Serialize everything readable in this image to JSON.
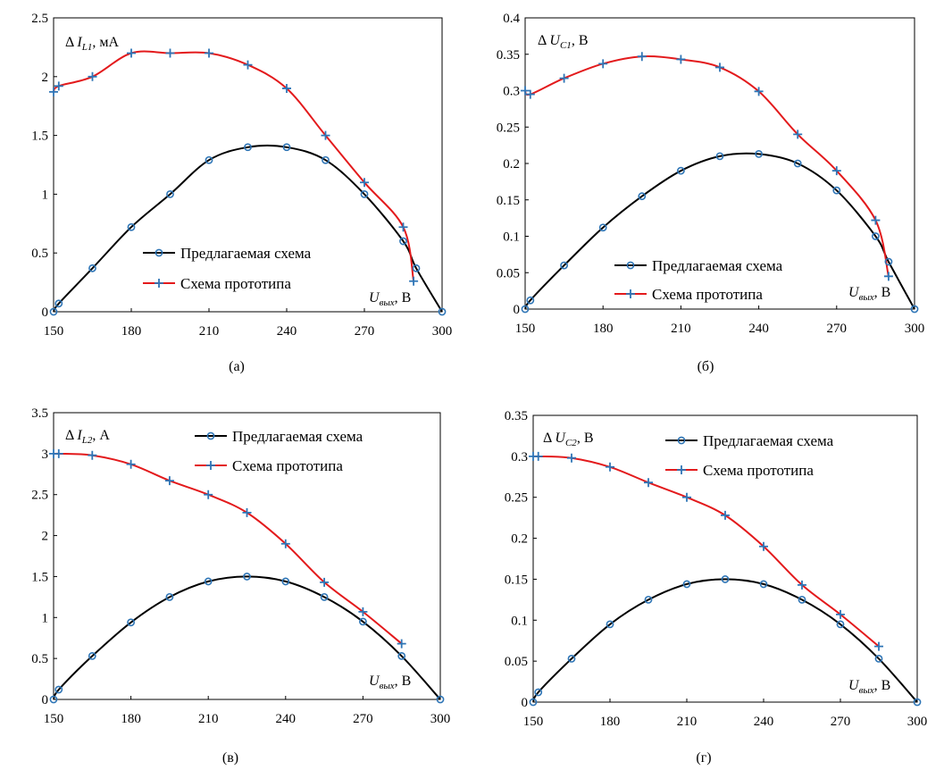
{
  "chart_data": [
    {
      "type": "line",
      "panel_label": "(а)",
      "y_label": {
        "delta": "Δ",
        "sym": "I",
        "sub": "L1",
        "unit": ", мА"
      },
      "x_label": {
        "sym": "U",
        "sub": "вых",
        "unit": ", В"
      },
      "xlim": [
        150,
        300
      ],
      "ylim": [
        0,
        2.5
      ],
      "xticks": [
        150,
        180,
        210,
        240,
        270,
        300
      ],
      "xtick_labels": [
        "150",
        "180",
        "210",
        "240",
        "270",
        "300"
      ],
      "yticks": [
        0,
        0.5,
        1,
        1.5,
        2,
        2.5
      ],
      "ytick_labels": [
        "0",
        "0.5",
        "1",
        "1.5",
        "2",
        "2.5"
      ],
      "legend_position": "lower-center",
      "series": [
        {
          "name": "Предлагаемая схема",
          "color": "#000000",
          "marker": "circle",
          "x": [
            150,
            152,
            165,
            180,
            195,
            210,
            225,
            240,
            255,
            270,
            285,
            290,
            300
          ],
          "y": [
            0,
            0.07,
            0.37,
            0.72,
            1.0,
            1.29,
            1.4,
            1.4,
            1.29,
            1.0,
            0.6,
            0.37,
            0
          ]
        },
        {
          "name": "Схема прототипа",
          "color": "#e31a1c",
          "marker": "plus",
          "x": [
            150,
            152,
            165,
            180,
            195,
            210,
            225,
            240,
            255,
            270,
            285,
            289
          ],
          "y": [
            1.87,
            1.92,
            2.0,
            2.2,
            2.2,
            2.2,
            2.1,
            1.9,
            1.5,
            1.1,
            0.72,
            0.26
          ]
        }
      ]
    },
    {
      "type": "line",
      "panel_label": "(б)",
      "y_label": {
        "delta": "Δ",
        "sym": "U",
        "sub": "C1",
        "unit": ", В"
      },
      "x_label": {
        "sym": "U",
        "sub": "вых",
        "unit": ", В"
      },
      "xlim": [
        150,
        300
      ],
      "ylim": [
        0,
        0.4
      ],
      "xticks": [
        150,
        180,
        210,
        240,
        270,
        300
      ],
      "xtick_labels": [
        "150",
        "180",
        "210",
        "240",
        "270",
        "300"
      ],
      "yticks": [
        0,
        0.05,
        0.1,
        0.15,
        0.2,
        0.25,
        0.3,
        0.35,
        0.4
      ],
      "ytick_labels": [
        "0",
        "0.05",
        "0.1",
        "0.15",
        "0.2",
        "0.25",
        "0.3",
        "0.35",
        "0.4"
      ],
      "legend_position": "lower-center",
      "series": [
        {
          "name": "Предлагаемая схема",
          "color": "#000000",
          "marker": "circle",
          "x": [
            150,
            152,
            165,
            180,
            195,
            210,
            225,
            240,
            255,
            270,
            285,
            290,
            300
          ],
          "y": [
            0,
            0.012,
            0.06,
            0.112,
            0.155,
            0.19,
            0.21,
            0.213,
            0.2,
            0.163,
            0.1,
            0.065,
            0
          ]
        },
        {
          "name": "Схема прототипа",
          "color": "#e31a1c",
          "marker": "plus",
          "x": [
            150,
            152,
            165,
            180,
            195,
            210,
            225,
            240,
            255,
            270,
            285,
            290
          ],
          "y": [
            0.3,
            0.295,
            0.317,
            0.337,
            0.347,
            0.343,
            0.332,
            0.299,
            0.24,
            0.19,
            0.122,
            0.045
          ]
        }
      ]
    },
    {
      "type": "line",
      "panel_label": "(в)",
      "y_label": {
        "delta": "Δ",
        "sym": "I",
        "sub": "L2",
        "unit": ", А"
      },
      "x_label": {
        "sym": "U",
        "sub": "вых",
        "unit": ", В"
      },
      "xlim": [
        150,
        300
      ],
      "ylim": [
        0,
        3.5
      ],
      "xticks": [
        150,
        180,
        210,
        240,
        270,
        300
      ],
      "xtick_labels": [
        "150",
        "180",
        "210",
        "240",
        "270",
        "300"
      ],
      "yticks": [
        0,
        0.5,
        1,
        1.5,
        2,
        2.5,
        3,
        3.5
      ],
      "ytick_labels": [
        "0",
        "0.5",
        "1",
        "1.5",
        "2",
        "2.5",
        "3",
        "3.5"
      ],
      "legend_position": "top-right",
      "series": [
        {
          "name": "Предлагаемая схема",
          "color": "#000000",
          "marker": "circle",
          "x": [
            150,
            152,
            165,
            180,
            195,
            210,
            225,
            240,
            255,
            270,
            285,
            300
          ],
          "y": [
            0,
            0.12,
            0.53,
            0.94,
            1.25,
            1.44,
            1.5,
            1.44,
            1.25,
            0.95,
            0.53,
            0
          ]
        },
        {
          "name": "Схема прототипа",
          "color": "#e31a1c",
          "marker": "plus",
          "x": [
            150,
            152,
            165,
            180,
            195,
            210,
            225,
            240,
            255,
            270,
            285
          ],
          "y": [
            3.0,
            3.0,
            2.98,
            2.87,
            2.67,
            2.5,
            2.28,
            1.9,
            1.43,
            1.07,
            0.68
          ]
        }
      ]
    },
    {
      "type": "line",
      "panel_label": "(г)",
      "y_label": {
        "delta": "Δ",
        "sym": "U",
        "sub": "C2",
        "unit": ", В"
      },
      "x_label": {
        "sym": "U",
        "sub": "вых",
        "unit": ", В"
      },
      "xlim": [
        150,
        300
      ],
      "ylim": [
        0,
        0.35
      ],
      "xticks": [
        150,
        180,
        210,
        240,
        270,
        300
      ],
      "xtick_labels": [
        "150",
        "180",
        "210",
        "240",
        "270",
        "300"
      ],
      "yticks": [
        0,
        0.05,
        0.1,
        0.15,
        0.2,
        0.25,
        0.3,
        0.35
      ],
      "ytick_labels": [
        "0",
        "0.05",
        "0.1",
        "0.15",
        "0.2",
        "0.25",
        "0.3",
        "0.35"
      ],
      "legend_position": "top-right",
      "series": [
        {
          "name": "Предлагаемая схема",
          "color": "#000000",
          "marker": "circle",
          "x": [
            150,
            152,
            165,
            180,
            195,
            210,
            225,
            240,
            255,
            270,
            285,
            300
          ],
          "y": [
            0,
            0.012,
            0.053,
            0.095,
            0.125,
            0.144,
            0.15,
            0.144,
            0.125,
            0.095,
            0.053,
            0
          ]
        },
        {
          "name": "Схема прототипа",
          "color": "#e31a1c",
          "marker": "plus",
          "x": [
            150,
            152,
            165,
            180,
            195,
            210,
            225,
            240,
            255,
            270,
            285
          ],
          "y": [
            0.3,
            0.3,
            0.298,
            0.287,
            0.268,
            0.25,
            0.228,
            0.19,
            0.143,
            0.107,
            0.068
          ]
        }
      ]
    }
  ],
  "colors": {
    "marker_color": "#2e75b6",
    "proposed_line": "#000000",
    "prototype_line": "#e31a1c"
  }
}
